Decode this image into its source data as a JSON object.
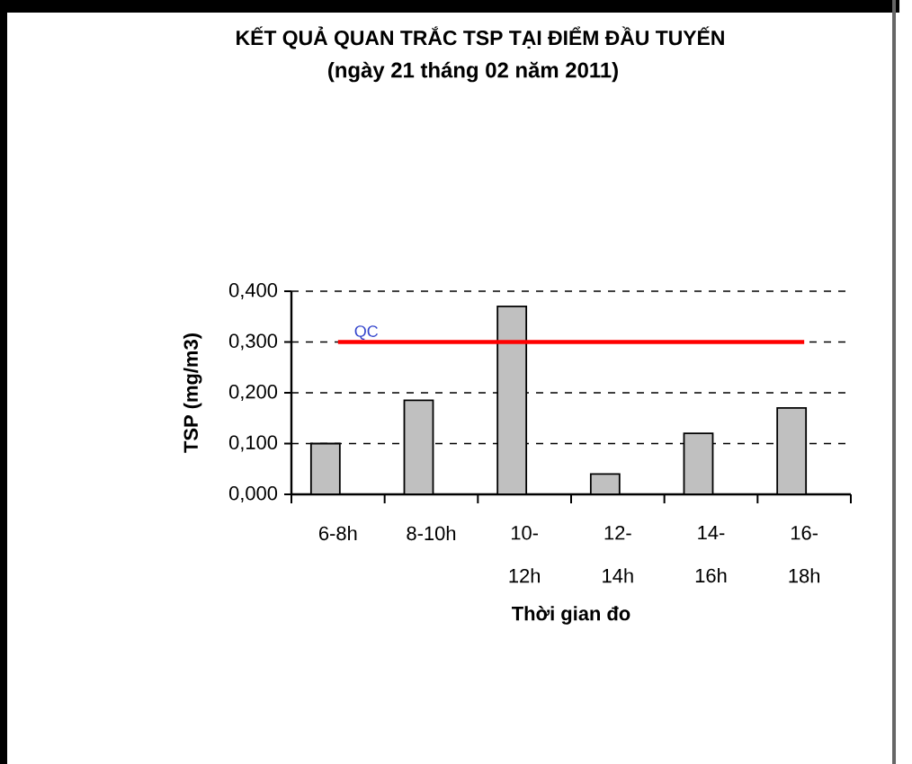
{
  "chart_data": {
    "type": "bar",
    "title": "KẾT QUẢ QUAN TRẮC TSP TẠI ĐIỂM ĐẦU TUYẾN",
    "subtitle": "(ngày 21 tháng 02 năm 2011)",
    "xlabel": "Thời gian đo",
    "ylabel": "TSP (mg/m3)",
    "categories": [
      "6-8h",
      "8-10h",
      "10-12h",
      "12-14h",
      "14-16h",
      "16-18h"
    ],
    "series": [
      {
        "color": "#c0c0c0",
        "values": [
          0.1,
          0.185,
          0.37,
          0.04,
          0.12,
          0.17
        ]
      },
      {
        "name": "QC",
        "type": "line",
        "color": "#ff0000",
        "values": [
          0.3,
          0.3,
          0.3,
          0.3,
          0.3,
          0.3
        ]
      }
    ],
    "ylim": [
      0,
      0.4
    ],
    "yticks": [
      {
        "value": 0,
        "label": "0,000"
      },
      {
        "value": 0.1,
        "label": "0,100"
      },
      {
        "value": 0.2,
        "label": "0,200"
      },
      {
        "value": 0.3,
        "label": "0,300"
      },
      {
        "value": 0.4,
        "label": "0,400"
      }
    ],
    "grid": "y"
  }
}
